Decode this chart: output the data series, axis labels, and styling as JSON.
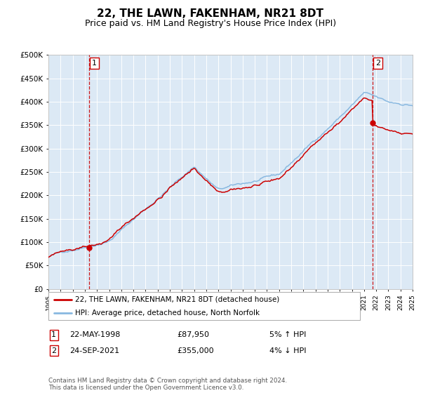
{
  "title": "22, THE LAWN, FAKENHAM, NR21 8DT",
  "subtitle": "Price paid vs. HM Land Registry's House Price Index (HPI)",
  "bg_color": "#dce9f5",
  "hpi_color": "#88b8e0",
  "price_color": "#cc0000",
  "dashed_line_color": "#cc0000",
  "ylim": [
    0,
    500000
  ],
  "yticks": [
    0,
    50000,
    100000,
    150000,
    200000,
    250000,
    300000,
    350000,
    400000,
    450000,
    500000
  ],
  "x_start_year": 1995,
  "x_end_year": 2025,
  "sale1_year": 1998.38,
  "sale1_price": 87950,
  "sale2_year": 2021.73,
  "sale2_price": 355000,
  "legend_label_price": "22, THE LAWN, FAKENHAM, NR21 8DT (detached house)",
  "legend_label_hpi": "HPI: Average price, detached house, North Norfolk",
  "annotation1": [
    "1",
    "22-MAY-1998",
    "£87,950",
    "5% ↑ HPI"
  ],
  "annotation2": [
    "2",
    "24-SEP-2021",
    "£355,000",
    "4% ↓ HPI"
  ],
  "footer": "Contains HM Land Registry data © Crown copyright and database right 2024.\nThis data is licensed under the Open Government Licence v3.0.",
  "title_fontsize": 11,
  "subtitle_fontsize": 9
}
